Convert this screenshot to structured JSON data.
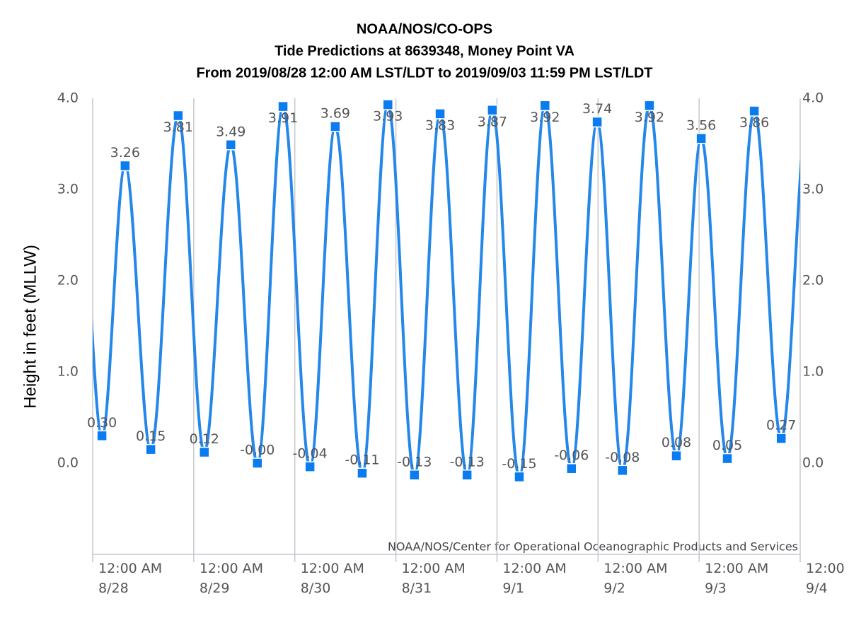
{
  "chart_data": {
    "type": "line",
    "title": [
      "NOAA/NOS/CO-OPS",
      "Tide Predictions at 8639348, Money Point VA",
      "From 2019/08/28 12:00 AM LST/LDT to 2019/09/03 11:59 PM LST/LDT"
    ],
    "y_label": "Height in feet (MLLW)",
    "credits": "NOAA/NOS/Center for Operational Oceanographic Products and Services",
    "x": [
      2.2,
      7.7,
      13.8,
      20.3,
      26.5,
      32.8,
      39.1,
      45.2,
      51.6,
      57.6,
      64.0,
      70.1,
      76.4,
      82.5,
      88.9,
      94.9,
      101.3,
      107.4,
      113.7,
      119.8,
      125.8,
      132.2,
      138.6,
      144.5,
      150.7,
      157.1,
      163.5
    ],
    "values": [
      0.3,
      3.26,
      0.15,
      3.81,
      0.12,
      3.49,
      0,
      3.91,
      -0.04,
      3.69,
      -0.11,
      3.93,
      -0.13,
      3.83,
      -0.13,
      3.87,
      -0.15,
      3.92,
      -0.06,
      3.74,
      -0.08,
      3.92,
      0.08,
      3.56,
      0.05,
      3.86,
      0.27
    ],
    "value_labels": [
      "0.30",
      "3.26",
      "0.15",
      "3.81",
      "0.12",
      "3.49",
      "-0.00",
      "3.91",
      "-0.04",
      "3.69",
      "-0.11",
      "3.93",
      "-0.13",
      "3.83",
      "-0.13",
      "3.87",
      "-0.15",
      "3.92",
      "-0.06",
      "3.74",
      "-0.08",
      "3.92",
      "0.08",
      "3.56",
      "0.05",
      "3.86",
      "0.27"
    ],
    "color": "#2487ea",
    "marker_color": "#0a7cf0",
    "xlim": [
      0,
      168
    ],
    "xticks": [
      {
        "value": 0,
        "label": "12:00 AM\n8/28"
      },
      {
        "value": 24,
        "label": "12:00 AM\n8/29"
      },
      {
        "value": 48,
        "label": "12:00 AM\n8/30"
      },
      {
        "value": 72,
        "label": "12:00 AM\n8/31"
      },
      {
        "value": 96,
        "label": "12:00 AM\n9/1"
      },
      {
        "value": 120,
        "label": "12:00 AM\n9/2"
      },
      {
        "value": 144,
        "label": "12:00 AM\n9/3"
      },
      {
        "value": 168,
        "label": "12:00\n9/4"
      }
    ],
    "ylim": [
      -1,
      4
    ],
    "yticks": [
      {
        "value": 0,
        "label": "0.0"
      },
      {
        "value": 1,
        "label": "1.0"
      },
      {
        "value": 2,
        "label": "2.0"
      },
      {
        "value": 3,
        "label": "3.0"
      },
      {
        "value": 4,
        "label": "4.0"
      }
    ],
    "grid": "x"
  }
}
